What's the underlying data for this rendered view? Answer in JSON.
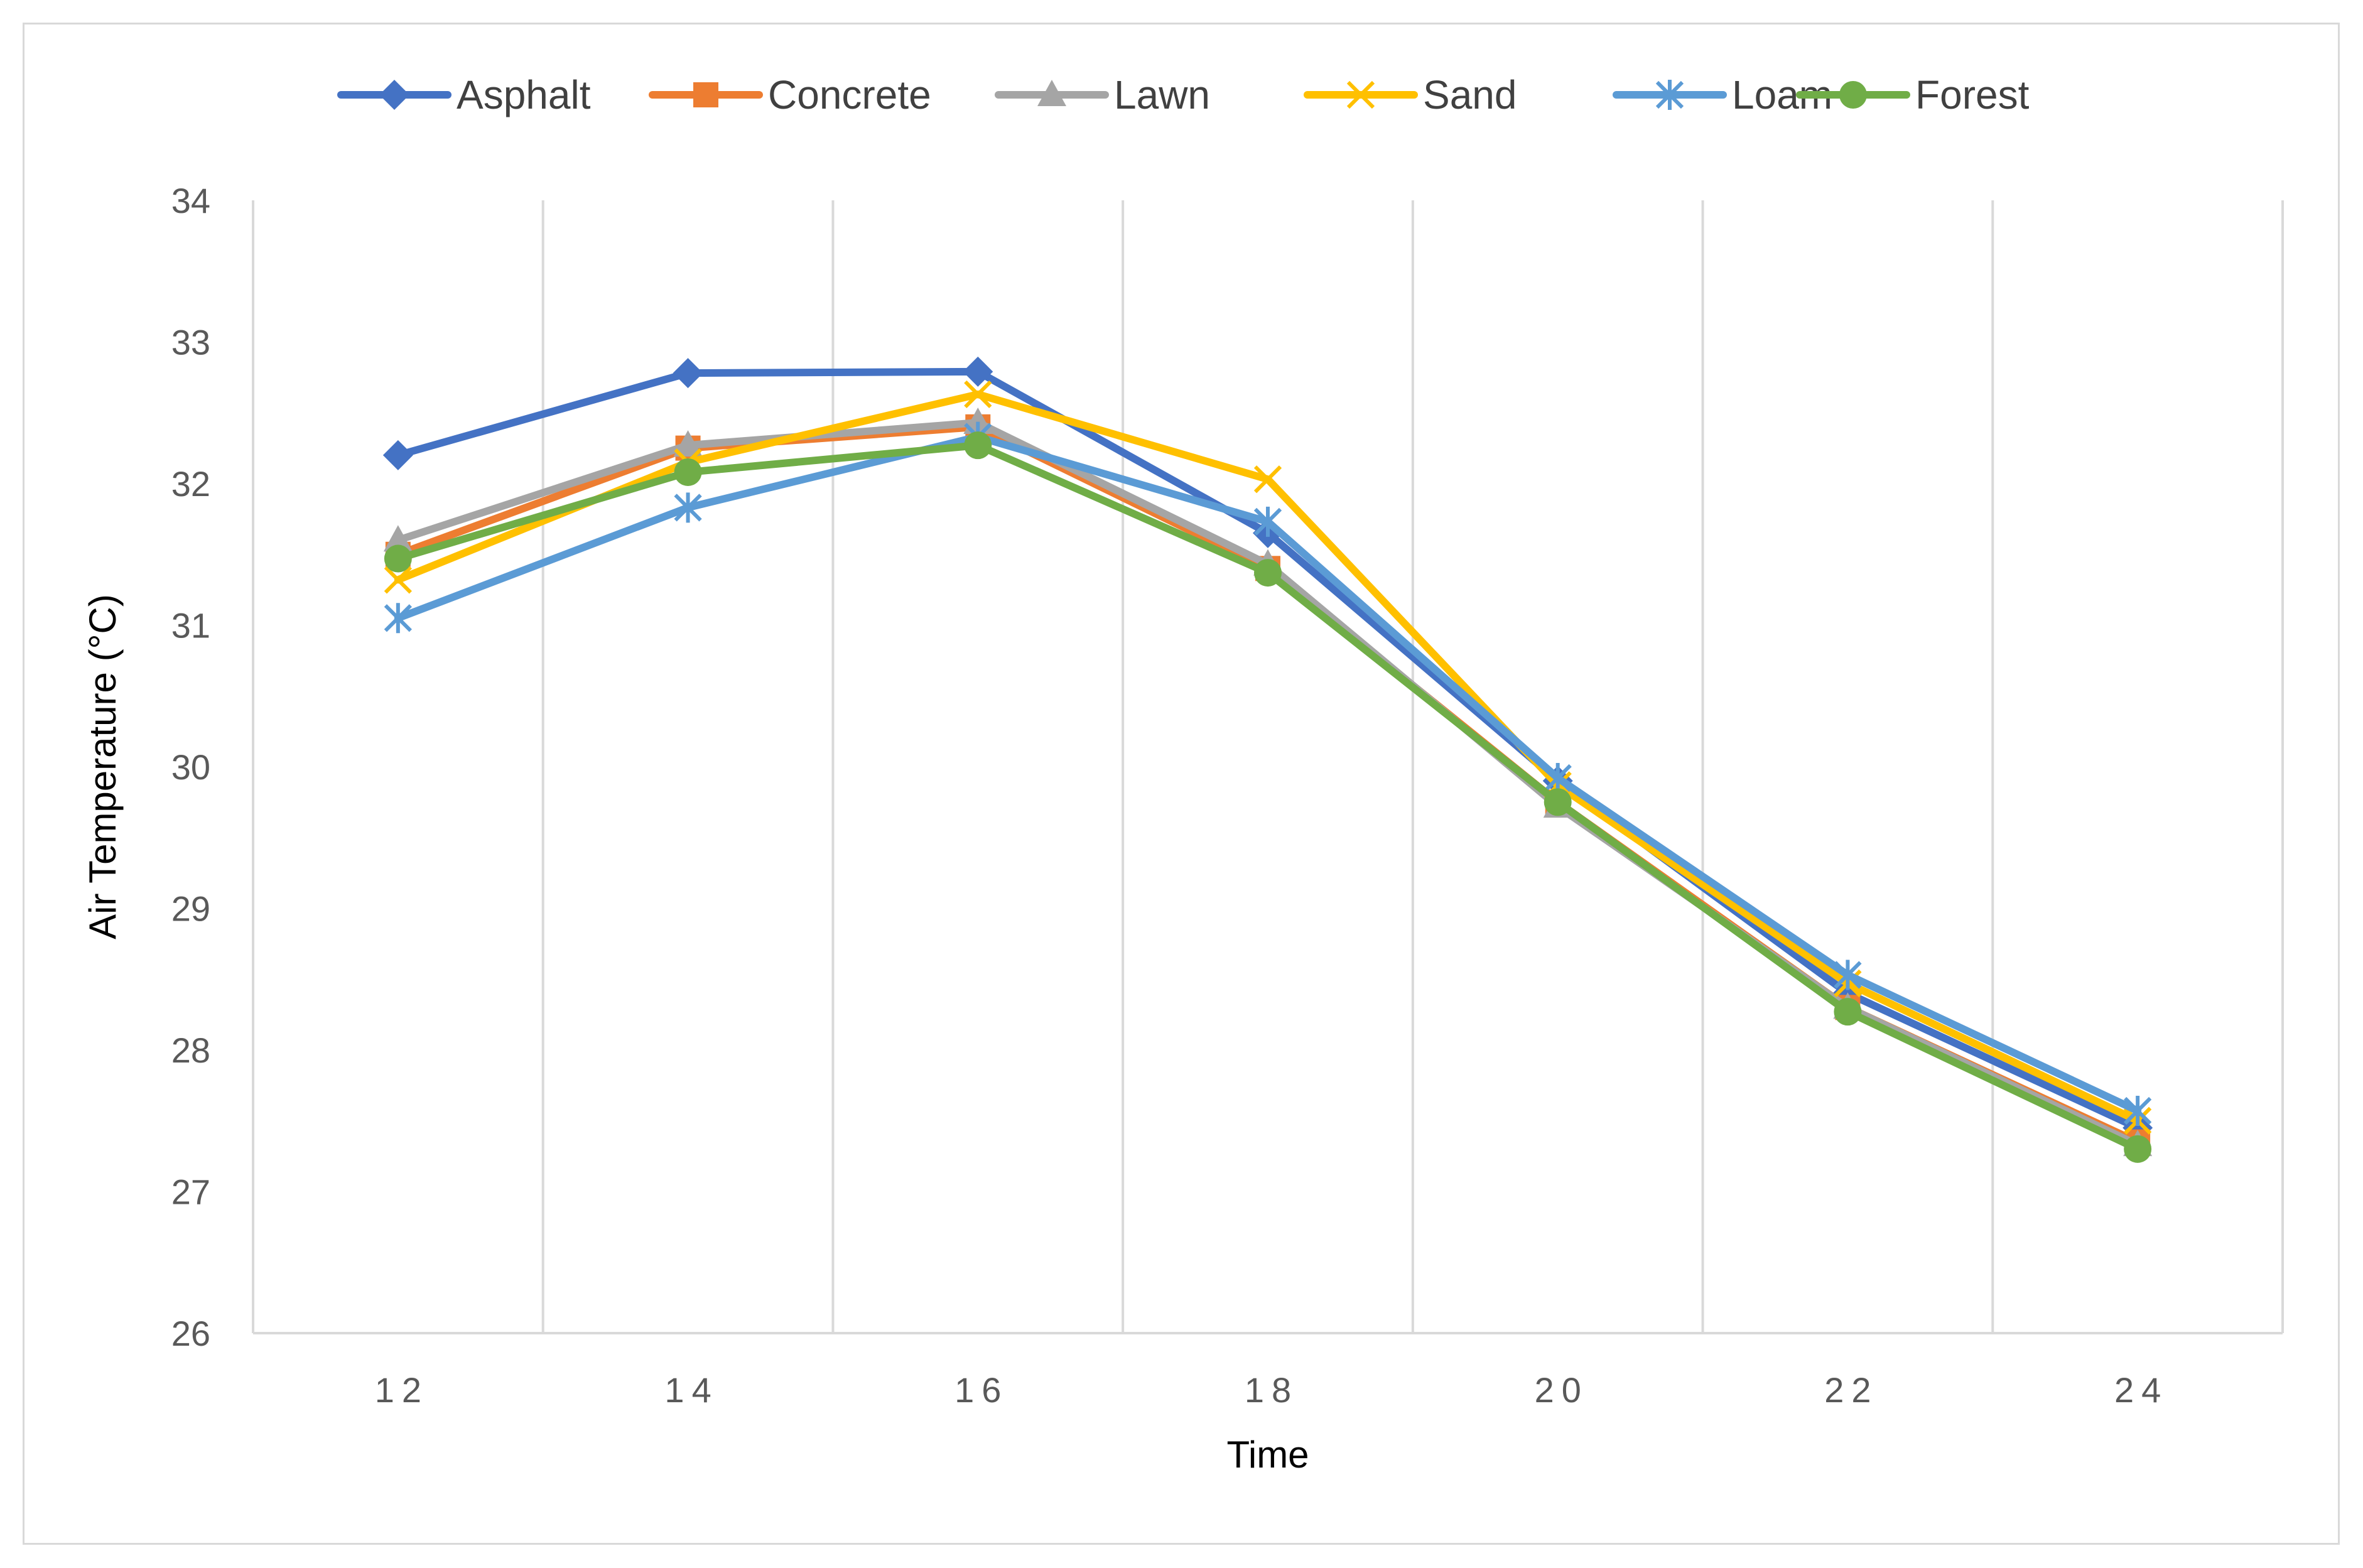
{
  "chart_data": {
    "type": "line",
    "title": "",
    "xlabel": "Time",
    "ylabel": "Air Temperature (°C)",
    "x": [
      12,
      14,
      16,
      18,
      20,
      22,
      24
    ],
    "xlim": [
      11,
      25
    ],
    "ylim": [
      26,
      34
    ],
    "yticks": [
      26,
      27,
      28,
      29,
      30,
      31,
      32,
      33,
      34
    ],
    "xticks": [
      12,
      14,
      16,
      18,
      20,
      22,
      24
    ],
    "grid": "vertical",
    "legend_position": "top",
    "series": [
      {
        "name": "Asphalt",
        "color": "#4472C4",
        "marker": "diamond",
        "values": [
          32.2,
          32.78,
          32.79,
          31.65,
          29.9,
          28.4,
          27.45
        ]
      },
      {
        "name": "Concrete",
        "color": "#ED7D31",
        "marker": "square",
        "values": [
          31.5,
          32.25,
          32.4,
          31.4,
          29.75,
          28.3,
          27.35
        ]
      },
      {
        "name": "Lawn",
        "color": "#A5A5A5",
        "marker": "triangle",
        "values": [
          31.6,
          32.27,
          32.43,
          31.43,
          29.72,
          28.3,
          27.33
        ]
      },
      {
        "name": "Sand",
        "color": "#FFC000",
        "marker": "x",
        "values": [
          31.32,
          32.15,
          32.63,
          32.03,
          29.87,
          28.47,
          27.5
        ]
      },
      {
        "name": "Loam",
        "color": "#5B9BD5",
        "marker": "star",
        "values": [
          31.05,
          31.83,
          32.33,
          31.73,
          29.92,
          28.53,
          27.57
        ]
      },
      {
        "name": "Forest",
        "color": "#70AD47",
        "marker": "circle",
        "values": [
          31.47,
          32.08,
          32.27,
          31.37,
          29.75,
          28.27,
          27.3
        ]
      }
    ]
  }
}
